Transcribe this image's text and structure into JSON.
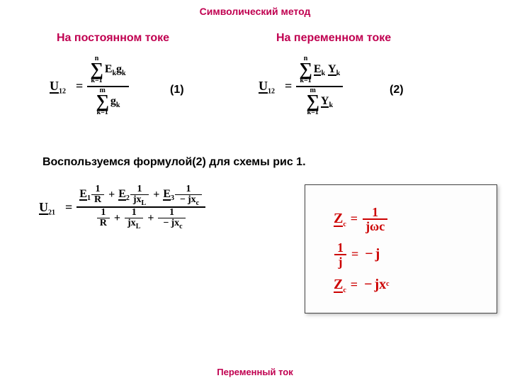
{
  "colors": {
    "accent": "#c00050",
    "redbox_text": "#cc0000",
    "text": "#000000",
    "bg": "#ffffff"
  },
  "title": "Символический метод",
  "footer": "Переменный ток",
  "heading_left": "На постоянном токе",
  "heading_right": "На переменном токе",
  "body_text": "Воспользуемся формулой(2) для схемы рис 1.",
  "label1": "(1)",
  "label2": "(2)",
  "formula1": {
    "lhs": "U",
    "lhs_sub": "12",
    "top_upper": "n",
    "top_lower": "k=1",
    "top_expr_a": "E",
    "top_expr_a_sub": "k",
    "top_expr_b": "g",
    "top_expr_b_sub": "k",
    "bot_upper": "m",
    "bot_lower": "k=1",
    "bot_expr": "g",
    "bot_expr_sub": "k"
  },
  "formula2": {
    "lhs": "U",
    "lhs_sub": "12",
    "top_upper": "n",
    "top_lower": "k=1",
    "top_expr_a": "E",
    "top_expr_a_sub": "k",
    "top_expr_b": "Y",
    "top_expr_b_sub": "k",
    "bot_upper": "m",
    "bot_lower": "k=1",
    "bot_expr": "Y",
    "bot_expr_sub": "k"
  },
  "formula3": {
    "lhs": "U",
    "lhs_sub": "21",
    "E1": "E",
    "E1s": "1",
    "d1n": "1",
    "d1d": "R",
    "E2": "E",
    "E2s": "2",
    "d2n": "1",
    "d2d": "jx",
    "d2ds": "L",
    "E3": "E",
    "E3s": "3",
    "d3n": "1",
    "d3d": "jx",
    "d3ds": "c",
    "b1n": "1",
    "b1d": "R",
    "b2n": "1",
    "b2d": "jx",
    "b2ds": "L",
    "b3n": "1",
    "b3d": "jx",
    "b3ds": "c"
  },
  "redbox": {
    "l1_lhs": "Z",
    "l1_sub": "c",
    "l1_fn": "1",
    "l1_fd": "jωc",
    "l2_fn": "1",
    "l2_fd": "j",
    "l2_rhs": "j",
    "l3_lhs": "Z",
    "l3_sub": "c",
    "l3_rhs": "jx",
    "l3_rsub": "c"
  }
}
